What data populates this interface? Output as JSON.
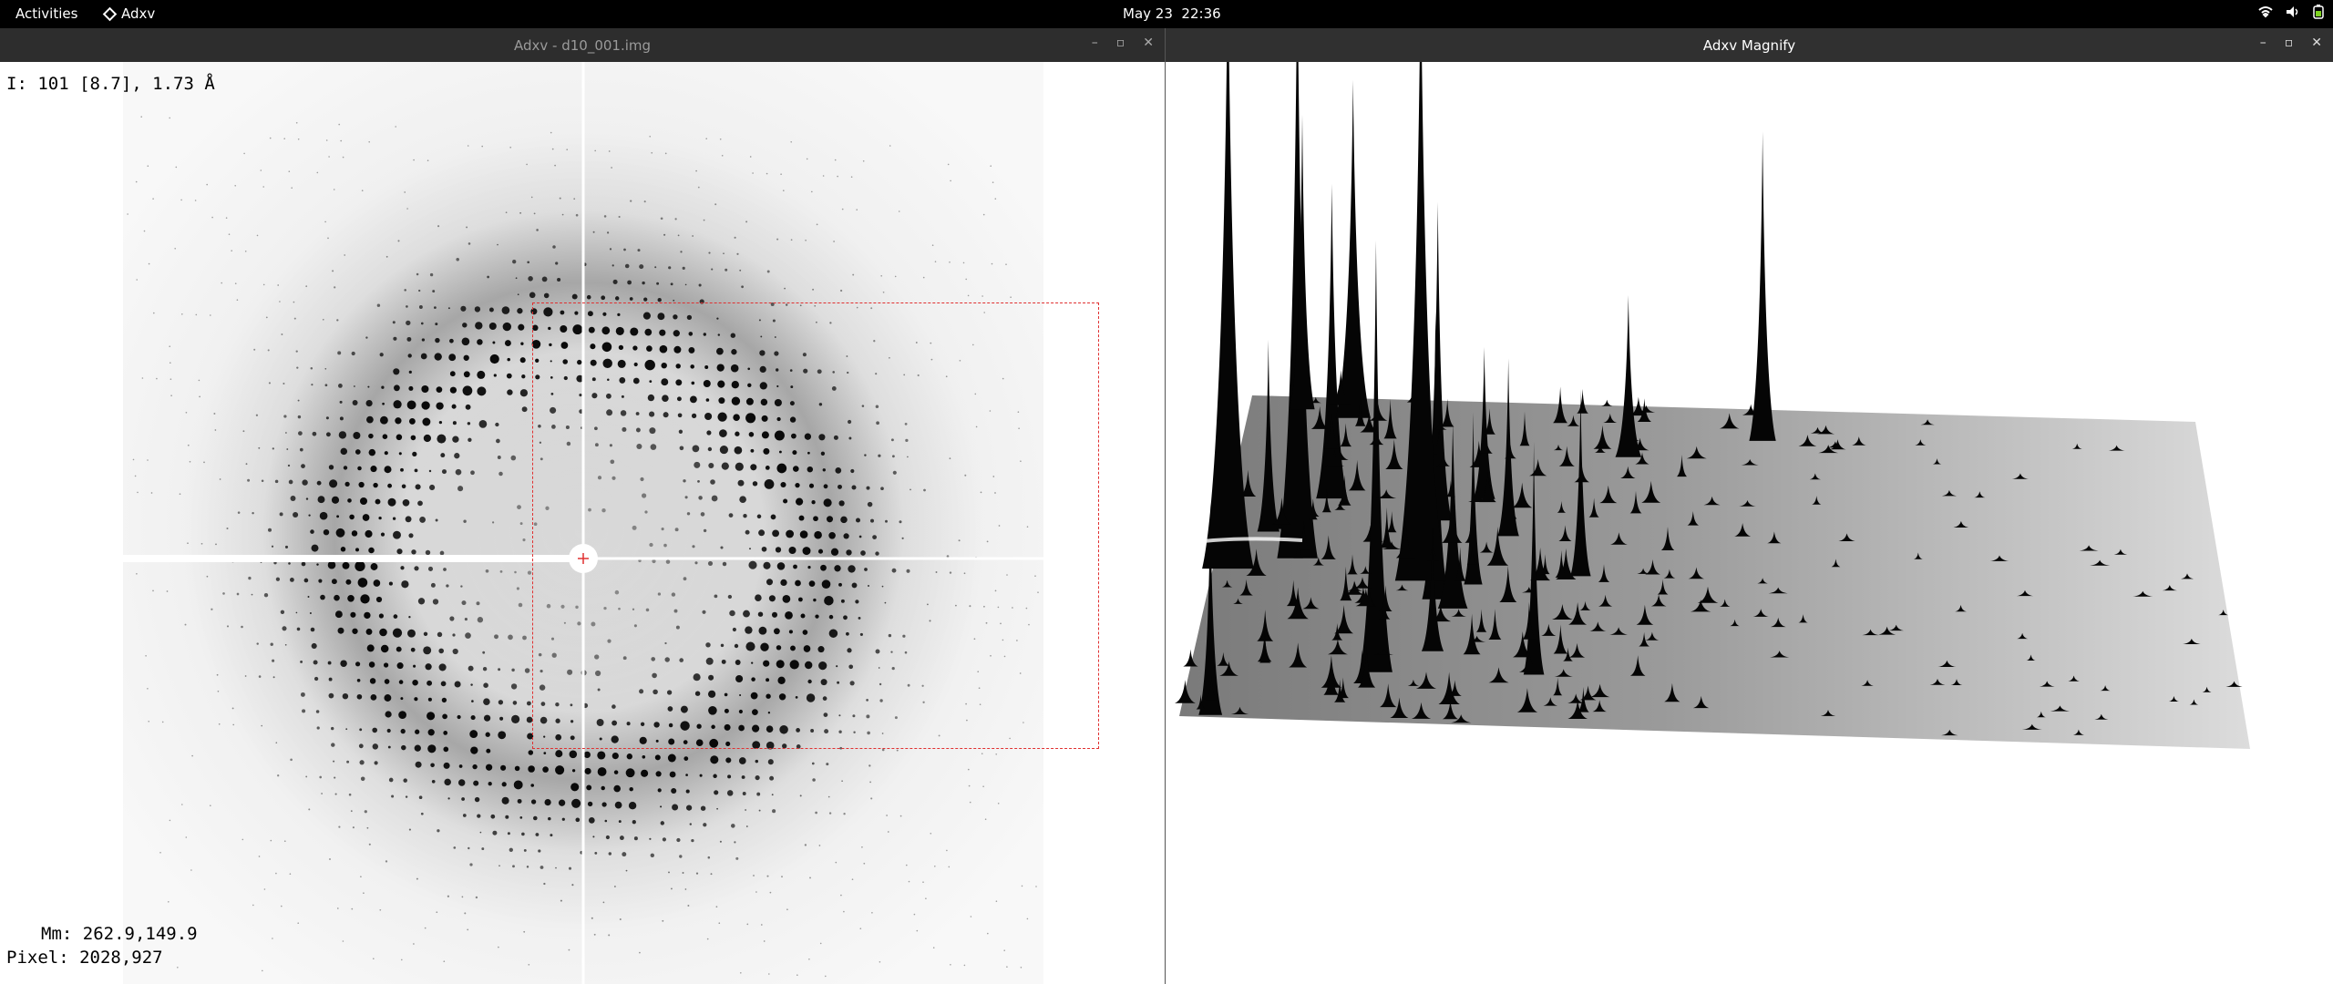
{
  "topbar": {
    "activities": "Activities",
    "app_name": "Adxv",
    "date": "May 23",
    "time": "22:36",
    "tray_icons": [
      "wifi-icon",
      "volume-icon",
      "battery-icon"
    ]
  },
  "left_window": {
    "title": "Adxv - d10_001.img",
    "controls": [
      "minimize",
      "maximize",
      "close"
    ],
    "readout_top": "I: 101 [8.7], 1.73 Å",
    "readout_mm": "Mm: 262.9,149.9",
    "readout_pixel": "Pixel: 2028,927",
    "zoom_box_color": "#e03030"
  },
  "right_window": {
    "title": "Adxv Magnify",
    "controls": [
      "minimize",
      "maximize",
      "close"
    ]
  },
  "glyphs": {
    "minimize": "–",
    "maximize": "▫",
    "close": "✕"
  }
}
